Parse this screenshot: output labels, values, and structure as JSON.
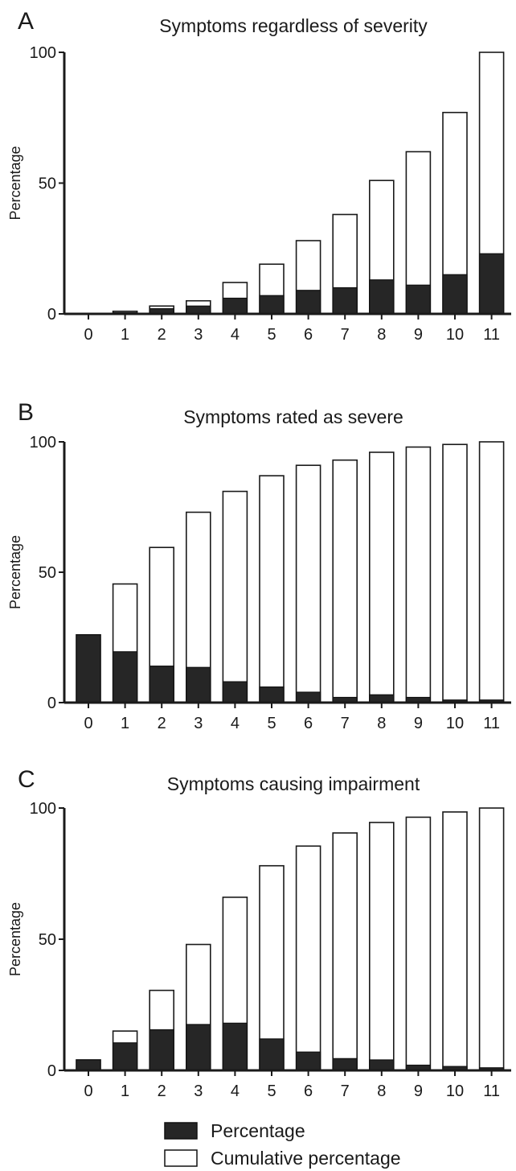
{
  "chart_data": [
    {
      "type": "bar",
      "panel": "A",
      "title": "Symptoms regardless of severity",
      "xlabel": "",
      "ylabel": "Percentage",
      "categories": [
        "0",
        "1",
        "2",
        "3",
        "4",
        "5",
        "6",
        "7",
        "8",
        "9",
        "10",
        "11"
      ],
      "ylim": [
        0,
        100
      ],
      "yticks": [
        "0",
        "50",
        "100"
      ],
      "series": [
        {
          "name": "Percentage",
          "color": "#262626",
          "values": [
            0,
            0.5,
            2,
            3,
            6,
            7,
            9,
            10,
            13,
            11,
            15,
            23
          ]
        },
        {
          "name": "Cumulative percentage",
          "color": "#ffffff",
          "values": [
            0,
            1,
            3,
            5,
            12,
            19,
            28,
            38,
            51,
            62,
            77,
            100
          ]
        }
      ]
    },
    {
      "type": "bar",
      "panel": "B",
      "title": "Symptoms rated as severe",
      "xlabel": "",
      "ylabel": "Percentage",
      "categories": [
        "0",
        "1",
        "2",
        "3",
        "4",
        "5",
        "6",
        "7",
        "8",
        "9",
        "10",
        "11"
      ],
      "ylim": [
        0,
        100
      ],
      "yticks": [
        "0",
        "50",
        "100"
      ],
      "series": [
        {
          "name": "Percentage",
          "color": "#262626",
          "values": [
            26,
            19.5,
            14,
            13.5,
            8,
            6,
            4,
            2,
            3,
            2,
            1,
            1
          ]
        },
        {
          "name": "Cumulative percentage",
          "color": "#ffffff",
          "values": [
            26,
            45.5,
            59.5,
            73,
            81,
            87,
            91,
            93,
            96,
            98,
            99,
            100
          ]
        }
      ]
    },
    {
      "type": "bar",
      "panel": "C",
      "title": "Symptoms causing impairment",
      "xlabel": "",
      "ylabel": "Percentage",
      "categories": [
        "0",
        "1",
        "2",
        "3",
        "4",
        "5",
        "6",
        "7",
        "8",
        "9",
        "10",
        "11"
      ],
      "ylim": [
        0,
        100
      ],
      "yticks": [
        "0",
        "50",
        "100"
      ],
      "series": [
        {
          "name": "Percentage",
          "color": "#262626",
          "values": [
            4,
            10.5,
            15.5,
            17.5,
            18,
            12,
            7,
            4.5,
            4,
            2,
            1.5,
            1
          ]
        },
        {
          "name": "Cumulative percentage",
          "color": "#ffffff",
          "values": [
            4,
            15,
            30.5,
            48,
            66,
            78,
            85.5,
            90.5,
            94.5,
            96.5,
            98.5,
            100
          ]
        }
      ]
    }
  ],
  "legend": [
    {
      "label": "Percentage",
      "fill": "#262626"
    },
    {
      "label": "Cumulative percentage",
      "fill": "#ffffff"
    }
  ]
}
